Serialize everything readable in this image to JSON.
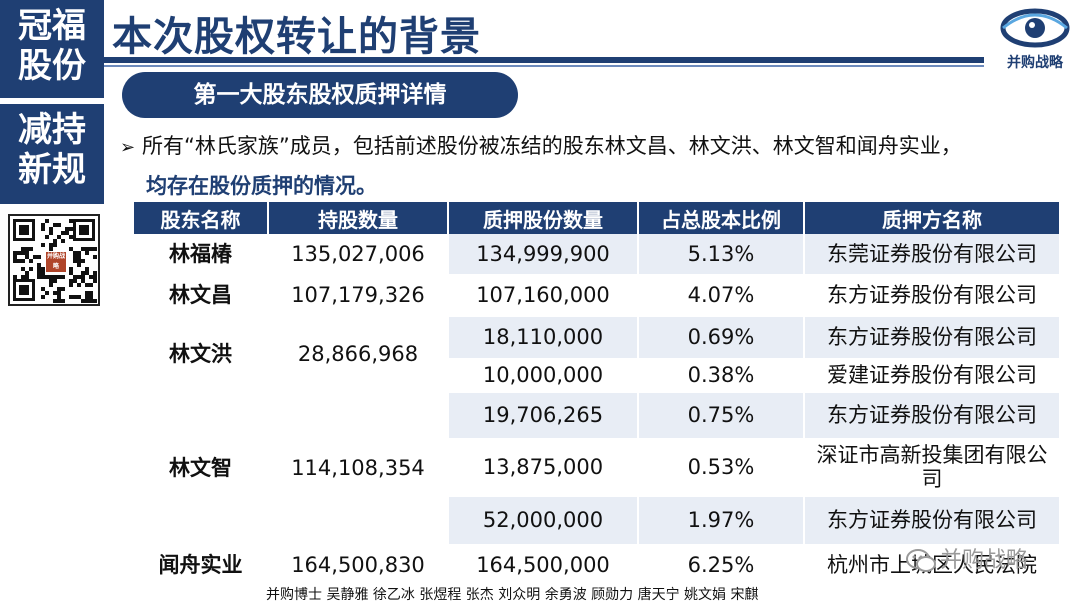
{
  "sidebar": {
    "block1": [
      "冠福",
      "股份"
    ],
    "block2": [
      "减持",
      "新规"
    ],
    "qr_badge": "并购战略"
  },
  "header": {
    "title": "本次股权转让的背景",
    "logo_text": "并购战略",
    "accent_color": "#1f3f73"
  },
  "section": {
    "heading": "第一大股东股权质押详情"
  },
  "paragraph": {
    "arrow": "➢",
    "line1": "所有“林氏家族”成员，包括前述股份被冻结的股东林文昌、林文洪、林文智和闻舟实业，",
    "line2": "均存在股份质押的情况。"
  },
  "table": {
    "headers": [
      "股东名称",
      "持股数量",
      "质押股份数量",
      "占总股本比例",
      "质押方名称"
    ],
    "groups": [
      {
        "holder": "林福椿",
        "shares": "135,027,006",
        "rows": [
          {
            "pledged": "134,999,900",
            "ratio": "5.13%",
            "pledgee": "东莞证券股份有限公司"
          }
        ]
      },
      {
        "holder": "林文昌",
        "shares": "107,179,326",
        "rows": [
          {
            "pledged": "107,160,000",
            "ratio": "4.07%",
            "pledgee": "东方证券股份有限公司"
          }
        ]
      },
      {
        "holder": "林文洪",
        "shares": "28,866,968",
        "rows": [
          {
            "pledged": "18,110,000",
            "ratio": "0.69%",
            "pledgee": "东方证券股份有限公司"
          },
          {
            "pledged": "10,000,000",
            "ratio": "0.38%",
            "pledgee": "爱建证券股份有限公司"
          }
        ]
      },
      {
        "holder": "林文智",
        "shares": "114,108,354",
        "rows": [
          {
            "pledged": "19,706,265",
            "ratio": "0.75%",
            "pledgee": "东方证券股份有限公司"
          },
          {
            "pledged": "13,875,000",
            "ratio": "0.53%",
            "pledgee": "深证市高新投集团有限公司"
          },
          {
            "pledged": "52,000,000",
            "ratio": "1.97%",
            "pledgee": "东方证券股份有限公司"
          }
        ]
      },
      {
        "holder": "闻舟实业",
        "shares": "164,500,830",
        "rows": [
          {
            "pledged": "164,500,000",
            "ratio": "6.25%",
            "pledgee": "杭州市上城区人民法院"
          }
        ]
      }
    ]
  },
  "watermark": {
    "text": "并购战略"
  },
  "footer": {
    "credits": "并购博士 吴静雅 徐乙冰 张煜程 张杰 刘众明 余勇波 顾勋力 唐天宁 姚文娟 宋麒"
  }
}
